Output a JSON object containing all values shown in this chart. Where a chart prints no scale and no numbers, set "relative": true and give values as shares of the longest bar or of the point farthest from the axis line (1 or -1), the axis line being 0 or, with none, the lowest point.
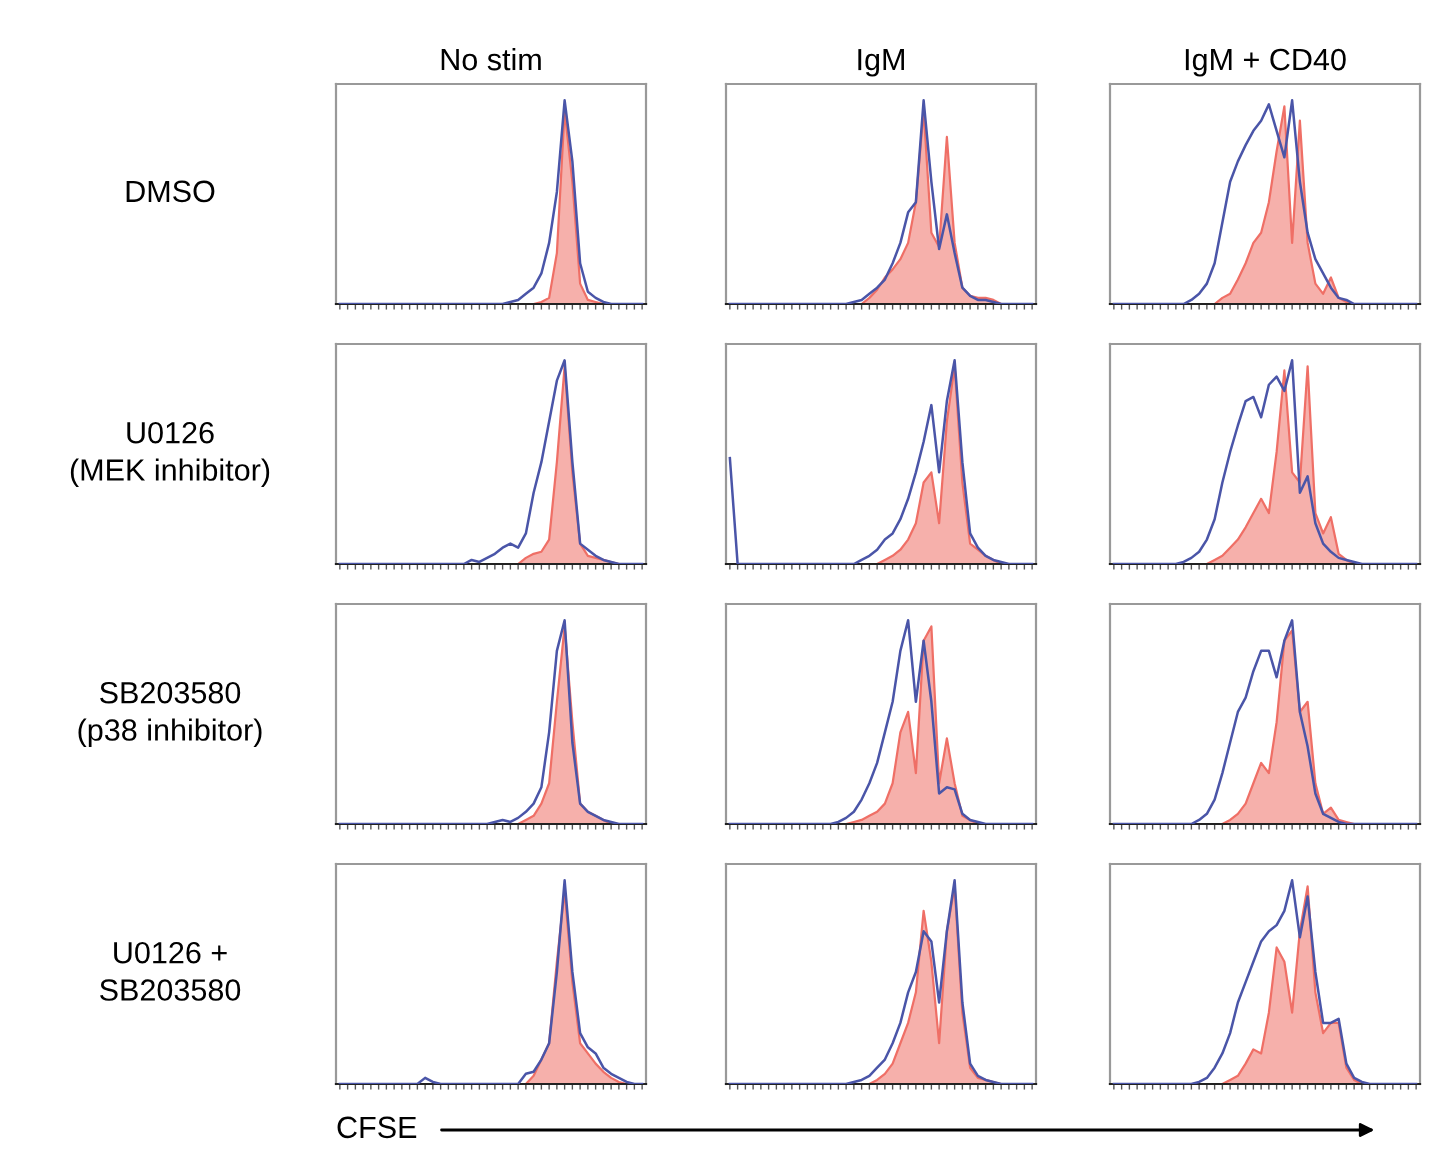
{
  "chart_data": [
    {
      "type": "area",
      "title": "No stim",
      "ylabel": "DMSO",
      "relative": true,
      "categories": [
        null,
        null,
        null,
        null,
        null,
        null,
        null,
        null,
        null,
        null,
        null,
        null,
        null,
        null,
        null,
        null,
        null,
        null,
        null,
        null,
        null,
        null,
        null,
        null,
        null,
        null,
        null,
        null,
        null,
        null,
        null,
        null,
        null,
        null,
        null,
        null,
        null,
        null,
        null,
        null
      ],
      "series": [
        {
          "color": "#ef6f66",
          "values": [
            0,
            0,
            0,
            0,
            0,
            0,
            0,
            0,
            0,
            0,
            0,
            0,
            0,
            0,
            0,
            0,
            0,
            0,
            0,
            0,
            0,
            0,
            0,
            0,
            0,
            0,
            0.01,
            0.03,
            0.25,
            0.95,
            0.6,
            0.1,
            0.02,
            0.01,
            0,
            0,
            0,
            0,
            0,
            0
          ]
        },
        {
          "type": "line",
          "color": "#4a55a8",
          "values": [
            0,
            0,
            0,
            0,
            0,
            0,
            0,
            0,
            0,
            0,
            0,
            0,
            0,
            0,
            0,
            0,
            0,
            0,
            0,
            0,
            0,
            0,
            0.01,
            0.02,
            0.05,
            0.08,
            0.15,
            0.3,
            0.55,
            1,
            0.7,
            0.2,
            0.06,
            0.03,
            0.01,
            0,
            0,
            0,
            0,
            0
          ]
        }
      ]
    },
    {
      "type": "area",
      "title": "IgM",
      "relative": true,
      "categories": [
        null,
        null,
        null,
        null,
        null,
        null,
        null,
        null,
        null,
        null,
        null,
        null,
        null,
        null,
        null,
        null,
        null,
        null,
        null,
        null,
        null,
        null,
        null,
        null,
        null,
        null,
        null,
        null,
        null,
        null,
        null,
        null,
        null,
        null,
        null,
        null,
        null,
        null,
        null,
        null
      ],
      "series": [
        {
          "color": "#ef6f66",
          "values": [
            0,
            0,
            0,
            0,
            0,
            0,
            0,
            0,
            0,
            0,
            0,
            0,
            0,
            0,
            0,
            0,
            0,
            0,
            0.03,
            0.07,
            0.13,
            0.17,
            0.22,
            0.3,
            0.5,
            0.95,
            0.35,
            0.28,
            0.82,
            0.3,
            0.08,
            0.04,
            0.03,
            0.03,
            0.02,
            0,
            0,
            0,
            0,
            0
          ]
        },
        {
          "type": "line",
          "color": "#4a55a8",
          "values": [
            0,
            0,
            0,
            0,
            0,
            0,
            0,
            0,
            0,
            0,
            0,
            0,
            0,
            0,
            0,
            0,
            0.01,
            0.02,
            0.05,
            0.08,
            0.12,
            0.2,
            0.3,
            0.45,
            0.5,
            1,
            0.6,
            0.27,
            0.44,
            0.25,
            0.08,
            0.04,
            0.02,
            0.02,
            0.01,
            0,
            0,
            0,
            0,
            0
          ]
        }
      ]
    },
    {
      "type": "area",
      "title": "IgM + CD40",
      "relative": true,
      "categories": [
        null,
        null,
        null,
        null,
        null,
        null,
        null,
        null,
        null,
        null,
        null,
        null,
        null,
        null,
        null,
        null,
        null,
        null,
        null,
        null,
        null,
        null,
        null,
        null,
        null,
        null,
        null,
        null,
        null,
        null,
        null,
        null,
        null,
        null,
        null,
        null,
        null,
        null,
        null,
        null
      ],
      "series": [
        {
          "color": "#ef6f66",
          "values": [
            0,
            0,
            0,
            0,
            0,
            0,
            0,
            0,
            0,
            0,
            0,
            0,
            0,
            0,
            0.03,
            0.05,
            0.12,
            0.2,
            0.3,
            0.35,
            0.5,
            0.75,
            0.97,
            0.3,
            0.9,
            0.3,
            0.1,
            0.05,
            0.13,
            0.03,
            0.01,
            0,
            0,
            0,
            0,
            0,
            0,
            0,
            0,
            0
          ]
        },
        {
          "type": "line",
          "color": "#4a55a8",
          "values": [
            0,
            0,
            0,
            0,
            0,
            0,
            0,
            0,
            0,
            0,
            0.02,
            0.05,
            0.1,
            0.2,
            0.4,
            0.6,
            0.7,
            0.78,
            0.85,
            0.9,
            0.98,
            0.85,
            0.72,
            1,
            0.6,
            0.35,
            0.22,
            0.15,
            0.08,
            0.03,
            0.02,
            0,
            0,
            0,
            0,
            0,
            0,
            0,
            0,
            0
          ]
        }
      ]
    },
    {
      "type": "area",
      "ylabel": "U0126\n(MEK inhibitor)",
      "relative": true,
      "categories": [
        null,
        null,
        null,
        null,
        null,
        null,
        null,
        null,
        null,
        null,
        null,
        null,
        null,
        null,
        null,
        null,
        null,
        null,
        null,
        null,
        null,
        null,
        null,
        null,
        null,
        null,
        null,
        null,
        null,
        null,
        null,
        null,
        null,
        null,
        null,
        null,
        null,
        null,
        null,
        null
      ],
      "series": [
        {
          "color": "#ef6f66",
          "values": [
            0,
            0,
            0,
            0,
            0,
            0,
            0,
            0,
            0,
            0,
            0,
            0,
            0,
            0,
            0,
            0,
            0,
            0,
            0,
            0,
            0,
            0,
            0,
            0,
            0.03,
            0.05,
            0.06,
            0.12,
            0.5,
            0.97,
            0.45,
            0.1,
            0.04,
            0.03,
            0.02,
            0.01,
            0,
            0,
            0,
            0
          ]
        },
        {
          "type": "line",
          "color": "#4a55a8",
          "values": [
            0,
            0,
            0,
            0,
            0,
            0,
            0,
            0,
            0,
            0,
            0,
            0,
            0,
            0,
            0,
            0,
            0,
            0.02,
            0.01,
            0.03,
            0.05,
            0.08,
            0.1,
            0.08,
            0.15,
            0.35,
            0.5,
            0.7,
            0.9,
            1,
            0.5,
            0.1,
            0.07,
            0.04,
            0.02,
            0.01,
            0,
            0,
            0,
            0
          ]
        }
      ]
    },
    {
      "type": "area",
      "relative": true,
      "categories": [
        null,
        null,
        null,
        null,
        null,
        null,
        null,
        null,
        null,
        null,
        null,
        null,
        null,
        null,
        null,
        null,
        null,
        null,
        null,
        null,
        null,
        null,
        null,
        null,
        null,
        null,
        null,
        null,
        null,
        null,
        null,
        null,
        null,
        null,
        null,
        null,
        null,
        null,
        null,
        null
      ],
      "series": [
        {
          "color": "#ef6f66",
          "values": [
            0,
            0,
            0,
            0,
            0,
            0,
            0,
            0,
            0,
            0,
            0,
            0,
            0,
            0,
            0,
            0,
            0,
            0,
            0,
            0,
            0.02,
            0.04,
            0.07,
            0.12,
            0.2,
            0.4,
            0.45,
            0.2,
            0.7,
            0.97,
            0.4,
            0.1,
            0.07,
            0.04,
            0.02,
            0,
            0,
            0,
            0,
            0
          ]
        },
        {
          "type": "line",
          "color": "#4a55a8",
          "values": [
            0.52,
            0,
            0,
            0,
            0,
            0,
            0,
            0,
            0,
            0,
            0,
            0,
            0,
            0,
            0,
            0,
            0,
            0.02,
            0.04,
            0.07,
            0.12,
            0.15,
            0.22,
            0.32,
            0.45,
            0.6,
            0.78,
            0.45,
            0.8,
            1,
            0.5,
            0.15,
            0.08,
            0.04,
            0.02,
            0.01,
            0,
            0,
            0,
            0
          ]
        }
      ]
    },
    {
      "type": "area",
      "relative": true,
      "categories": [
        null,
        null,
        null,
        null,
        null,
        null,
        null,
        null,
        null,
        null,
        null,
        null,
        null,
        null,
        null,
        null,
        null,
        null,
        null,
        null,
        null,
        null,
        null,
        null,
        null,
        null,
        null,
        null,
        null,
        null,
        null,
        null,
        null,
        null,
        null,
        null,
        null,
        null,
        null,
        null
      ],
      "series": [
        {
          "color": "#ef6f66",
          "values": [
            0,
            0,
            0,
            0,
            0,
            0,
            0,
            0,
            0,
            0,
            0,
            0,
            0,
            0.02,
            0.04,
            0.08,
            0.12,
            0.18,
            0.25,
            0.32,
            0.25,
            0.55,
            0.95,
            0.45,
            0.4,
            0.97,
            0.25,
            0.15,
            0.23,
            0.05,
            0.02,
            0,
            0,
            0,
            0,
            0,
            0,
            0,
            0,
            0
          ]
        },
        {
          "type": "line",
          "color": "#4a55a8",
          "values": [
            0,
            0,
            0,
            0,
            0,
            0,
            0,
            0,
            0,
            0.01,
            0.03,
            0.06,
            0.12,
            0.22,
            0.4,
            0.55,
            0.68,
            0.8,
            0.82,
            0.72,
            0.88,
            0.92,
            0.85,
            1,
            0.35,
            0.43,
            0.2,
            0.1,
            0.06,
            0.03,
            0.02,
            0.01,
            0,
            0,
            0,
            0,
            0,
            0,
            0,
            0
          ]
        }
      ]
    },
    {
      "type": "area",
      "ylabel": "SB203580\n(p38 inhibitor)",
      "relative": true,
      "categories": [
        null,
        null,
        null,
        null,
        null,
        null,
        null,
        null,
        null,
        null,
        null,
        null,
        null,
        null,
        null,
        null,
        null,
        null,
        null,
        null,
        null,
        null,
        null,
        null,
        null,
        null,
        null,
        null,
        null,
        null,
        null,
        null,
        null,
        null,
        null,
        null,
        null,
        null,
        null,
        null
      ],
      "series": [
        {
          "color": "#ef6f66",
          "values": [
            0,
            0,
            0,
            0,
            0,
            0,
            0,
            0,
            0,
            0,
            0,
            0,
            0,
            0,
            0,
            0,
            0,
            0,
            0,
            0,
            0,
            0,
            0,
            0,
            0.02,
            0.04,
            0.1,
            0.2,
            0.6,
            0.97,
            0.5,
            0.1,
            0.06,
            0.04,
            0.02,
            0,
            0,
            0,
            0,
            0
          ]
        },
        {
          "type": "line",
          "color": "#4a55a8",
          "values": [
            0,
            0,
            0,
            0,
            0,
            0,
            0,
            0,
            0,
            0,
            0,
            0,
            0,
            0,
            0,
            0,
            0,
            0,
            0,
            0,
            0.01,
            0.02,
            0.01,
            0.03,
            0.06,
            0.1,
            0.18,
            0.45,
            0.85,
            1,
            0.4,
            0.1,
            0.06,
            0.04,
            0.02,
            0.01,
            0,
            0,
            0,
            0
          ]
        }
      ]
    },
    {
      "type": "area",
      "relative": true,
      "categories": [
        null,
        null,
        null,
        null,
        null,
        null,
        null,
        null,
        null,
        null,
        null,
        null,
        null,
        null,
        null,
        null,
        null,
        null,
        null,
        null,
        null,
        null,
        null,
        null,
        null,
        null,
        null,
        null,
        null,
        null,
        null,
        null,
        null,
        null,
        null,
        null,
        null,
        null,
        null,
        null
      ],
      "series": [
        {
          "color": "#ef6f66",
          "values": [
            0,
            0,
            0,
            0,
            0,
            0,
            0,
            0,
            0,
            0,
            0,
            0,
            0,
            0,
            0,
            0,
            0.01,
            0.02,
            0.04,
            0.06,
            0.1,
            0.2,
            0.45,
            0.55,
            0.25,
            0.9,
            0.97,
            0.2,
            0.42,
            0.2,
            0.04,
            0.02,
            0,
            0,
            0,
            0,
            0,
            0,
            0,
            0
          ]
        },
        {
          "type": "line",
          "color": "#4a55a8",
          "values": [
            0,
            0,
            0,
            0,
            0,
            0,
            0,
            0,
            0,
            0,
            0,
            0,
            0,
            0,
            0.01,
            0.03,
            0.06,
            0.12,
            0.2,
            0.3,
            0.45,
            0.6,
            0.85,
            1,
            0.6,
            0.9,
            0.6,
            0.15,
            0.18,
            0.17,
            0.05,
            0.02,
            0.01,
            0,
            0,
            0,
            0,
            0,
            0,
            0
          ]
        }
      ]
    },
    {
      "type": "area",
      "relative": true,
      "categories": [
        null,
        null,
        null,
        null,
        null,
        null,
        null,
        null,
        null,
        null,
        null,
        null,
        null,
        null,
        null,
        null,
        null,
        null,
        null,
        null,
        null,
        null,
        null,
        null,
        null,
        null,
        null,
        null,
        null,
        null,
        null,
        null,
        null,
        null,
        null,
        null,
        null,
        null,
        null,
        null
      ],
      "series": [
        {
          "color": "#ef6f66",
          "values": [
            0,
            0,
            0,
            0,
            0,
            0,
            0,
            0,
            0,
            0,
            0,
            0,
            0,
            0,
            0,
            0.02,
            0.05,
            0.1,
            0.2,
            0.3,
            0.25,
            0.5,
            0.9,
            0.95,
            0.55,
            0.6,
            0.2,
            0.05,
            0.08,
            0.02,
            0.01,
            0,
            0,
            0,
            0,
            0,
            0,
            0,
            0,
            0
          ]
        },
        {
          "type": "line",
          "color": "#4a55a8",
          "values": [
            0,
            0,
            0,
            0,
            0,
            0,
            0,
            0,
            0,
            0,
            0,
            0.02,
            0.05,
            0.12,
            0.25,
            0.4,
            0.55,
            0.62,
            0.75,
            0.85,
            0.85,
            0.72,
            0.9,
            1,
            0.55,
            0.38,
            0.15,
            0.05,
            0.03,
            0.01,
            0,
            0,
            0,
            0,
            0,
            0,
            0,
            0,
            0,
            0
          ]
        }
      ]
    },
    {
      "type": "area",
      "ylabel": "U0126 +\nSB203580",
      "xlabel": "CFSE",
      "relative": true,
      "categories": [
        null,
        null,
        null,
        null,
        null,
        null,
        null,
        null,
        null,
        null,
        null,
        null,
        null,
        null,
        null,
        null,
        null,
        null,
        null,
        null,
        null,
        null,
        null,
        null,
        null,
        null,
        null,
        null,
        null,
        null,
        null,
        null,
        null,
        null,
        null,
        null,
        null,
        null,
        null,
        null
      ],
      "series": [
        {
          "color": "#ef6f66",
          "values": [
            0,
            0,
            0,
            0,
            0,
            0,
            0,
            0,
            0,
            0,
            0,
            0,
            0,
            0,
            0,
            0,
            0,
            0,
            0,
            0,
            0,
            0,
            0,
            0,
            0,
            0.04,
            0.12,
            0.2,
            0.6,
            0.95,
            0.5,
            0.2,
            0.15,
            0.1,
            0.06,
            0.03,
            0.01,
            0,
            0,
            0
          ]
        },
        {
          "type": "line",
          "color": "#4a55a8",
          "values": [
            0,
            0,
            0,
            0,
            0,
            0,
            0,
            0,
            0,
            0,
            0,
            0.03,
            0.01,
            0,
            0,
            0,
            0,
            0,
            0,
            0,
            0,
            0,
            0,
            0,
            0.05,
            0.06,
            0.12,
            0.2,
            0.55,
            1,
            0.55,
            0.25,
            0.18,
            0.15,
            0.08,
            0.05,
            0.03,
            0.01,
            0,
            0
          ]
        }
      ]
    },
    {
      "type": "area",
      "relative": true,
      "categories": [
        null,
        null,
        null,
        null,
        null,
        null,
        null,
        null,
        null,
        null,
        null,
        null,
        null,
        null,
        null,
        null,
        null,
        null,
        null,
        null,
        null,
        null,
        null,
        null,
        null,
        null,
        null,
        null,
        null,
        null,
        null,
        null,
        null,
        null,
        null,
        null,
        null,
        null,
        null,
        null
      ],
      "series": [
        {
          "color": "#ef6f66",
          "values": [
            0,
            0,
            0,
            0,
            0,
            0,
            0,
            0,
            0,
            0,
            0,
            0,
            0,
            0,
            0,
            0,
            0,
            0,
            0,
            0.02,
            0.05,
            0.1,
            0.2,
            0.3,
            0.45,
            0.85,
            0.6,
            0.2,
            0.75,
            0.97,
            0.35,
            0.08,
            0.03,
            0.02,
            0.01,
            0,
            0,
            0,
            0,
            0
          ]
        },
        {
          "type": "line",
          "color": "#4a55a8",
          "values": [
            0,
            0,
            0,
            0,
            0,
            0,
            0,
            0,
            0,
            0,
            0,
            0,
            0,
            0,
            0,
            0,
            0.01,
            0.02,
            0.04,
            0.08,
            0.12,
            0.2,
            0.3,
            0.45,
            0.55,
            0.75,
            0.7,
            0.4,
            0.75,
            1,
            0.4,
            0.1,
            0.04,
            0.02,
            0.01,
            0,
            0,
            0,
            0,
            0
          ]
        }
      ]
    },
    {
      "type": "area",
      "relative": true,
      "categories": [
        null,
        null,
        null,
        null,
        null,
        null,
        null,
        null,
        null,
        null,
        null,
        null,
        null,
        null,
        null,
        null,
        null,
        null,
        null,
        null,
        null,
        null,
        null,
        null,
        null,
        null,
        null,
        null,
        null,
        null,
        null,
        null,
        null,
        null,
        null,
        null,
        null,
        null,
        null,
        null
      ],
      "series": [
        {
          "color": "#ef6f66",
          "values": [
            0,
            0,
            0,
            0,
            0,
            0,
            0,
            0,
            0,
            0,
            0,
            0,
            0,
            0,
            0,
            0.02,
            0.04,
            0.1,
            0.17,
            0.15,
            0.35,
            0.67,
            0.6,
            0.35,
            0.75,
            0.97,
            0.45,
            0.25,
            0.3,
            0.3,
            0.08,
            0.02,
            0,
            0,
            0,
            0,
            0,
            0,
            0,
            0
          ]
        },
        {
          "type": "line",
          "color": "#4a55a8",
          "values": [
            0,
            0,
            0,
            0,
            0,
            0,
            0,
            0,
            0,
            0,
            0,
            0.01,
            0.03,
            0.08,
            0.15,
            0.25,
            0.4,
            0.5,
            0.6,
            0.7,
            0.75,
            0.78,
            0.85,
            1,
            0.72,
            0.92,
            0.55,
            0.3,
            0.3,
            0.32,
            0.1,
            0.03,
            0.01,
            0,
            0,
            0,
            0,
            0,
            0,
            0
          ]
        }
      ]
    }
  ]
}
